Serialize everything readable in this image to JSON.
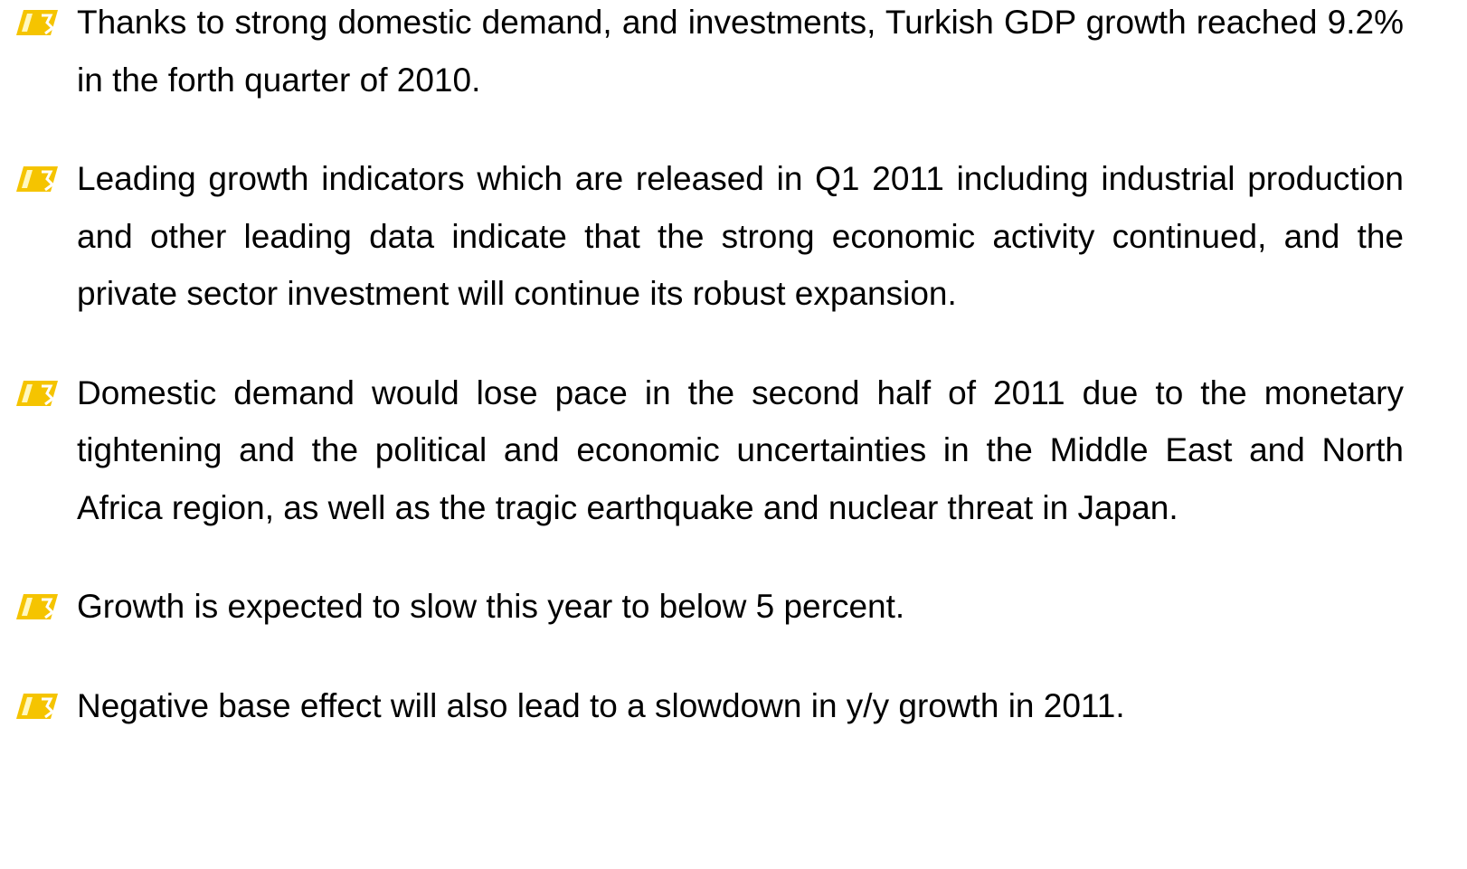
{
  "bullets": [
    "Thanks to strong domestic demand, and investments, Turkish GDP growth reached 9.2% in the forth quarter of 2010.",
    "Leading growth indicators which are released in Q1 2011 including industrial production and other leading data indicate that the strong economic activity continued, and the private sector investment will continue its robust expansion.",
    "Domestic demand would lose pace in the second half of 2011 due to the monetary tightening and the political and economic uncertainties in the Middle East and North Africa region, as well as the tragic earthquake and nuclear threat in Japan.",
    "Growth is expected to slow this year to below 5 percent.",
    "Negative base effect will also lead to a slowdown in y/y growth in 2011."
  ]
}
